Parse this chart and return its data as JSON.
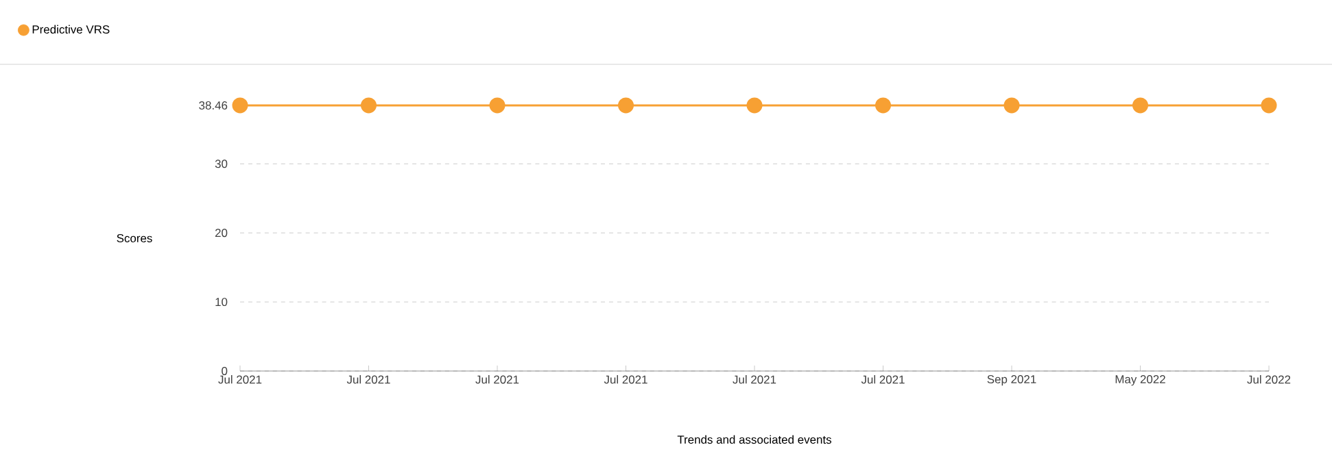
{
  "chart_data": {
    "type": "line",
    "xlabel": "Trends and associated events",
    "ylabel": "Scores",
    "categories": [
      "Jul 2021",
      "Jul 2021",
      "Jul 2021",
      "Jul 2021",
      "Jul 2021",
      "Jul 2021",
      "Sep 2021",
      "May 2022",
      "Jul 2022"
    ],
    "series": [
      {
        "name": "Predictive VRS",
        "color": "#f7a033",
        "values": [
          38.46,
          38.46,
          38.46,
          38.46,
          38.46,
          38.46,
          38.46,
          38.46,
          38.46
        ]
      }
    ],
    "ylim": [
      0,
      38.46
    ],
    "yticks": [
      0,
      10,
      20,
      30,
      38.46
    ],
    "grid": "y",
    "legend": "top left",
    "marker": "circle",
    "line_style": "solid"
  }
}
